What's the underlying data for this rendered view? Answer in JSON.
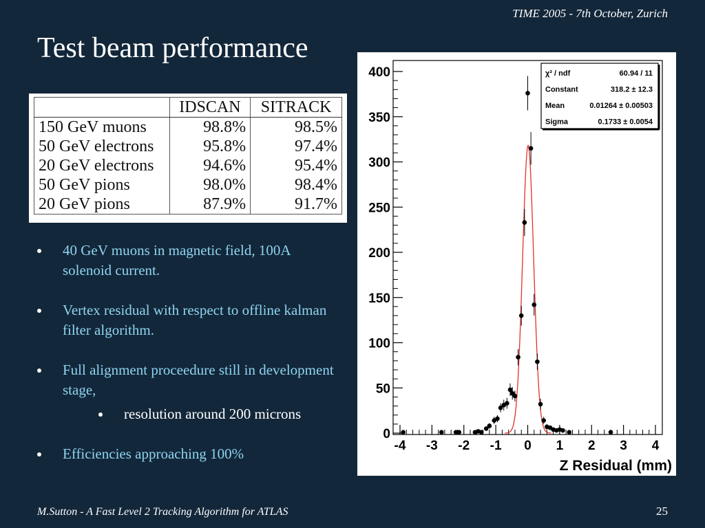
{
  "header": {
    "event": "TIME 2005 - 7th October,  Zurich"
  },
  "title": "Test beam performance",
  "table": {
    "headers": [
      "",
      "IDSCAN",
      "SITRACK"
    ],
    "rows": [
      [
        "150 GeV muons",
        "98.8%",
        "98.5%"
      ],
      [
        "50 GeV electrons",
        "95.8%",
        "97.4%"
      ],
      [
        "20 GeV electrons",
        "94.6%",
        "95.4%"
      ],
      [
        "50 GeV pions",
        "98.0%",
        "98.4%"
      ],
      [
        "20 GeV pions",
        "87.9%",
        "91.7%"
      ]
    ]
  },
  "bullets": [
    {
      "text": "40 GeV muons in magnetic field, 100A solenoid current."
    },
    {
      "text": "Vertex residual with respect to offline kalman filter algorithm."
    },
    {
      "text": "Full alignment proceedure still in development stage,",
      "sub": "resolution around  200 microns"
    },
    {
      "text": "Efficiencies approaching 100%"
    }
  ],
  "footer": {
    "author": "M.Sutton - A Fast Level 2 Tracking Algorithm for ATLAS",
    "page": "25"
  },
  "chart_data": {
    "type": "scatter",
    "xlabel": "Z Residual (mm)",
    "ylabel": "",
    "xlim": [
      -4,
      4
    ],
    "ylim": [
      0,
      400
    ],
    "xticks": [
      -4,
      -3,
      -2,
      -1,
      0,
      1,
      2,
      3,
      4
    ],
    "yticks": [
      0,
      50,
      100,
      150,
      200,
      250,
      300,
      350,
      400
    ],
    "stats": [
      {
        "label": "χ² / ndf",
        "value": "60.94 / 11"
      },
      {
        "label": "Constant",
        "value": "318.2 ± 12.3"
      },
      {
        "label": "Mean",
        "value": "0.01264 ± 0.00503"
      },
      {
        "label": "Sigma",
        "value": "0.1733 ± 0.0054"
      }
    ],
    "fit": {
      "constant": 318.2,
      "mean": 0.01264,
      "sigma": 0.1733,
      "color": "#e0302a"
    },
    "points": [
      {
        "x": -3.9,
        "y": 1,
        "err": 0
      },
      {
        "x": -2.7,
        "y": 1,
        "err": 0
      },
      {
        "x": -2.25,
        "y": 1,
        "err": 0
      },
      {
        "x": -2.15,
        "y": 1,
        "err": 0
      },
      {
        "x": -1.65,
        "y": 1,
        "err": 0
      },
      {
        "x": -1.55,
        "y": 2,
        "err": 0
      },
      {
        "x": -1.45,
        "y": 1,
        "err": 0
      },
      {
        "x": -1.3,
        "y": 5,
        "err": 2
      },
      {
        "x": -1.2,
        "y": 8,
        "err": 3
      },
      {
        "x": -1.05,
        "y": 14,
        "err": 4
      },
      {
        "x": -0.95,
        "y": 16,
        "err": 4
      },
      {
        "x": -0.85,
        "y": 28,
        "err": 5
      },
      {
        "x": -0.75,
        "y": 31,
        "err": 6
      },
      {
        "x": -0.65,
        "y": 33,
        "err": 6
      },
      {
        "x": -0.55,
        "y": 48,
        "err": 7
      },
      {
        "x": -0.48,
        "y": 44,
        "err": 7
      },
      {
        "x": -0.4,
        "y": 41,
        "err": 6
      },
      {
        "x": -0.3,
        "y": 84,
        "err": 9
      },
      {
        "x": -0.2,
        "y": 130,
        "err": 11
      },
      {
        "x": -0.1,
        "y": 233,
        "err": 15
      },
      {
        "x": 0.0,
        "y": 376,
        "err": 19
      },
      {
        "x": 0.1,
        "y": 315,
        "err": 18
      },
      {
        "x": 0.2,
        "y": 142,
        "err": 12
      },
      {
        "x": 0.3,
        "y": 79,
        "err": 9
      },
      {
        "x": 0.4,
        "y": 32,
        "err": 6
      },
      {
        "x": 0.5,
        "y": 14,
        "err": 4
      },
      {
        "x": 0.6,
        "y": 7,
        "err": 3
      },
      {
        "x": 0.7,
        "y": 6,
        "err": 2
      },
      {
        "x": 0.8,
        "y": 4,
        "err": 2
      },
      {
        "x": 0.9,
        "y": 3,
        "err": 2
      },
      {
        "x": 1.0,
        "y": 4,
        "err": 2
      },
      {
        "x": 1.1,
        "y": 3,
        "err": 2
      },
      {
        "x": 1.3,
        "y": 1,
        "err": 0
      },
      {
        "x": 2.6,
        "y": 1,
        "err": 0
      }
    ]
  }
}
